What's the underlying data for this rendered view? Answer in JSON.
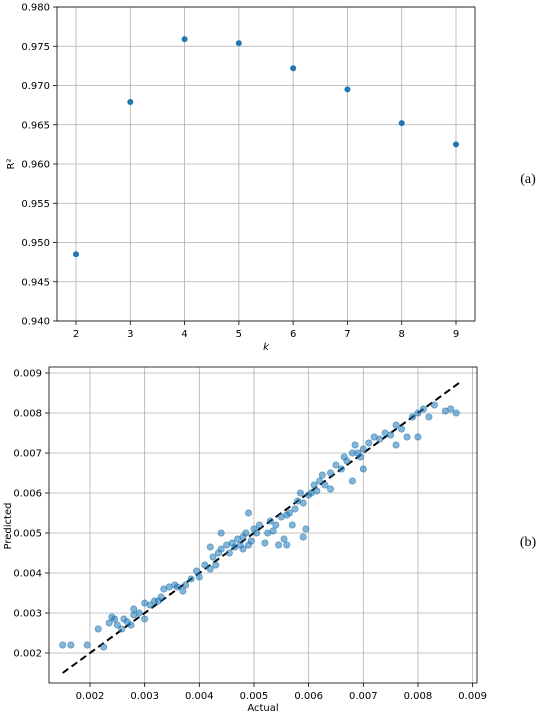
{
  "chart_data": [
    {
      "type": "scatter",
      "panel_label": "(a)",
      "xlabel": "k",
      "ylabel": "R²",
      "xlim": [
        1.65,
        9.35
      ],
      "ylim": [
        0.94,
        0.98
      ],
      "xticks": [
        2,
        3,
        4,
        5,
        6,
        7,
        8,
        9
      ],
      "yticks": [
        "0.940",
        "0.945",
        "0.950",
        "0.955",
        "0.960",
        "0.965",
        "0.970",
        "0.975",
        "0.980"
      ],
      "grid": true,
      "color": "#1f77b4",
      "x": [
        2,
        3,
        4,
        5,
        6,
        7,
        8,
        9
      ],
      "y": [
        0.9485,
        0.9679,
        0.9759,
        0.9754,
        0.9722,
        0.9695,
        0.9652,
        0.9625
      ]
    },
    {
      "type": "scatter",
      "panel_label": "(b)",
      "xlabel": "Actual",
      "ylabel": "Predicted",
      "xlim": [
        0.00125,
        0.00908
      ],
      "ylim": [
        0.00125,
        0.00915
      ],
      "xticks": [
        "0.002",
        "0.003",
        "0.004",
        "0.005",
        "0.006",
        "0.007",
        "0.008",
        "0.009"
      ],
      "yticks": [
        "0.002",
        "0.003",
        "0.004",
        "0.005",
        "0.006",
        "0.007",
        "0.008",
        "0.009"
      ],
      "grid": true,
      "color": "#1f77b4",
      "reference_line": {
        "x": [
          0.0015,
          0.0088
        ],
        "y": [
          0.0015,
          0.0088
        ],
        "style": "dashed",
        "color": "#000000"
      },
      "points": [
        [
          0.0015,
          0.0022
        ],
        [
          0.00165,
          0.0022
        ],
        [
          0.00195,
          0.0022
        ],
        [
          0.00215,
          0.0026
        ],
        [
          0.00225,
          0.00215
        ],
        [
          0.00235,
          0.00275
        ],
        [
          0.0024,
          0.0029
        ],
        [
          0.00245,
          0.00285
        ],
        [
          0.0025,
          0.0027
        ],
        [
          0.00258,
          0.0026
        ],
        [
          0.00262,
          0.00285
        ],
        [
          0.00268,
          0.00278
        ],
        [
          0.00275,
          0.0027
        ],
        [
          0.0028,
          0.00295
        ],
        [
          0.0029,
          0.003
        ],
        [
          0.003,
          0.00285
        ],
        [
          0.0031,
          0.0032
        ],
        [
          0.00318,
          0.0033
        ],
        [
          0.00325,
          0.0033
        ],
        [
          0.00335,
          0.0036
        ],
        [
          0.00345,
          0.00365
        ],
        [
          0.00355,
          0.0037
        ],
        [
          0.0036,
          0.00365
        ],
        [
          0.0037,
          0.00355
        ],
        [
          0.00375,
          0.0037
        ],
        [
          0.00385,
          0.00385
        ],
        [
          0.00395,
          0.00405
        ],
        [
          0.004,
          0.0039
        ],
        [
          0.0041,
          0.0042
        ],
        [
          0.0042,
          0.0041
        ],
        [
          0.0042,
          0.00465
        ],
        [
          0.00425,
          0.0044
        ],
        [
          0.0043,
          0.0042
        ],
        [
          0.00435,
          0.0045
        ],
        [
          0.0044,
          0.0046
        ],
        [
          0.0045,
          0.0047
        ],
        [
          0.00455,
          0.0045
        ],
        [
          0.0046,
          0.00475
        ],
        [
          0.00465,
          0.00465
        ],
        [
          0.0047,
          0.00485
        ],
        [
          0.00475,
          0.0047
        ],
        [
          0.0048,
          0.0049
        ],
        [
          0.00485,
          0.005
        ],
        [
          0.0049,
          0.0047
        ],
        [
          0.00495,
          0.0048
        ],
        [
          0.005,
          0.0051
        ],
        [
          0.00505,
          0.005
        ],
        [
          0.0051,
          0.0052
        ],
        [
          0.0052,
          0.00475
        ],
        [
          0.00525,
          0.005
        ],
        [
          0.0053,
          0.0053
        ],
        [
          0.00535,
          0.00505
        ],
        [
          0.0054,
          0.0052
        ],
        [
          0.00545,
          0.0047
        ],
        [
          0.0055,
          0.0054
        ],
        [
          0.00555,
          0.00485
        ],
        [
          0.0056,
          0.00545
        ],
        [
          0.00565,
          0.0055
        ],
        [
          0.0057,
          0.0052
        ],
        [
          0.00575,
          0.0056
        ],
        [
          0.0058,
          0.0058
        ],
        [
          0.00585,
          0.006
        ],
        [
          0.0059,
          0.00575
        ],
        [
          0.00595,
          0.0051
        ],
        [
          0.006,
          0.00595
        ],
        [
          0.00605,
          0.006
        ],
        [
          0.0061,
          0.0062
        ],
        [
          0.00615,
          0.00605
        ],
        [
          0.0062,
          0.0063
        ],
        [
          0.00625,
          0.00645
        ],
        [
          0.0063,
          0.0062
        ],
        [
          0.0064,
          0.0065
        ],
        [
          0.0065,
          0.0067
        ],
        [
          0.0066,
          0.0066
        ],
        [
          0.00665,
          0.0069
        ],
        [
          0.0067,
          0.0068
        ],
        [
          0.0068,
          0.007
        ],
        [
          0.00685,
          0.0072
        ],
        [
          0.0069,
          0.007
        ],
        [
          0.00695,
          0.0069
        ],
        [
          0.007,
          0.0071
        ],
        [
          0.0071,
          0.00725
        ],
        [
          0.0072,
          0.0074
        ],
        [
          0.0073,
          0.00735
        ],
        [
          0.0074,
          0.0075
        ],
        [
          0.0075,
          0.00745
        ],
        [
          0.0076,
          0.0077
        ],
        [
          0.0077,
          0.0076
        ],
        [
          0.0078,
          0.0074
        ],
        [
          0.0079,
          0.0079
        ],
        [
          0.008,
          0.008
        ],
        [
          0.0081,
          0.0081
        ],
        [
          0.0082,
          0.0079
        ],
        [
          0.0083,
          0.0082
        ],
        [
          0.0085,
          0.00805
        ],
        [
          0.0086,
          0.0081
        ],
        [
          0.0087,
          0.008
        ],
        [
          0.0068,
          0.0063
        ],
        [
          0.0056,
          0.0047
        ],
        [
          0.0048,
          0.0046
        ],
        [
          0.0044,
          0.005
        ],
        [
          0.0049,
          0.0055
        ],
        [
          0.0059,
          0.0049
        ],
        [
          0.0064,
          0.0061
        ],
        [
          0.007,
          0.0066
        ],
        [
          0.0076,
          0.0072
        ],
        [
          0.008,
          0.0074
        ],
        [
          0.0028,
          0.0031
        ],
        [
          0.003,
          0.00325
        ],
        [
          0.0033,
          0.0034
        ]
      ]
    }
  ]
}
